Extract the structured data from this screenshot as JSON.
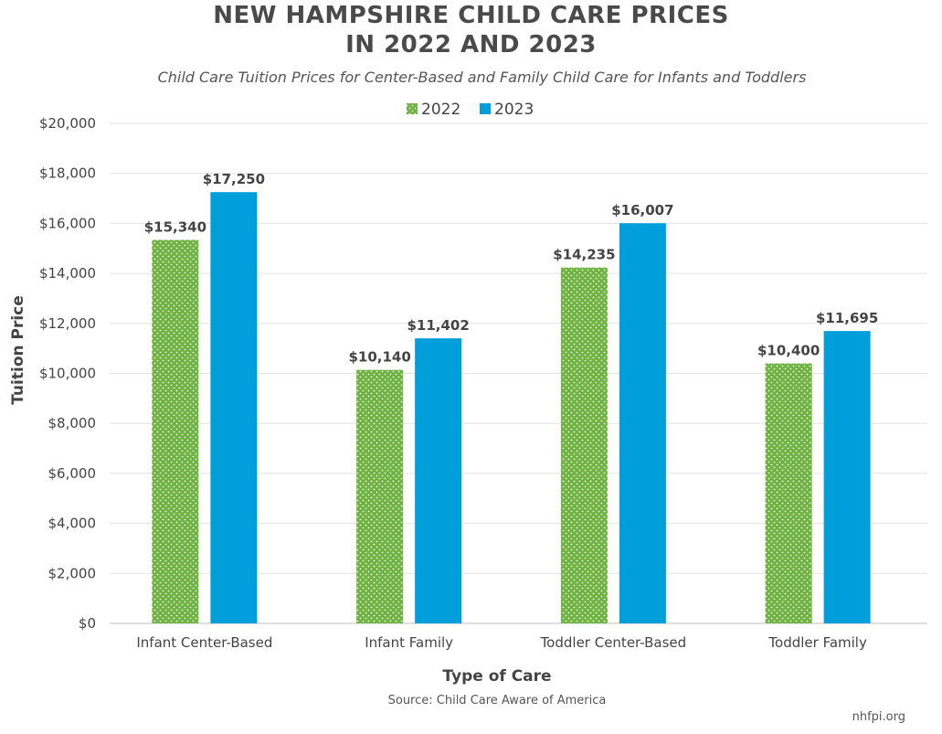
{
  "chart_data": {
    "type": "bar",
    "title_lines": [
      "NEW HAMPSHIRE CHILD CARE PRICES",
      "IN 2022 AND 2023"
    ],
    "subtitle": "Child Care Tuition Prices for Center-Based and Family Child Care for Infants and Toddlers",
    "xlabel": "Type of Care",
    "ylabel": "Tuition Price",
    "categories": [
      "Infant Center-Based",
      "Infant Family",
      "Toddler Center-Based",
      "Toddler Family"
    ],
    "series": [
      {
        "name": "2022",
        "values": [
          15340,
          10140,
          14235,
          10400
        ],
        "labels": [
          "$15,340",
          "$10,140",
          "$14,235",
          "$10,400"
        ],
        "color": "#6db33f",
        "pattern": "dotted"
      },
      {
        "name": "2023",
        "values": [
          17250,
          11402,
          16007,
          11695
        ],
        "labels": [
          "$17,250",
          "$11,402",
          "$16,007",
          "$11,695"
        ],
        "color": "#009fdc",
        "pattern": "solid"
      }
    ],
    "ylim": [
      0,
      20000
    ],
    "yticks": [
      0,
      2000,
      4000,
      6000,
      8000,
      10000,
      12000,
      14000,
      16000,
      18000,
      20000
    ],
    "ytick_labels": [
      "$0",
      "$2,000",
      "$4,000",
      "$6,000",
      "$8,000",
      "$10,000",
      "$12,000",
      "$14,000",
      "$16,000",
      "$18,000",
      "$20,000"
    ],
    "grid": true,
    "legend_position": "top-center"
  },
  "footer": {
    "source": "Source: Child Care Aware of America",
    "credit": "nhfpi.org"
  }
}
